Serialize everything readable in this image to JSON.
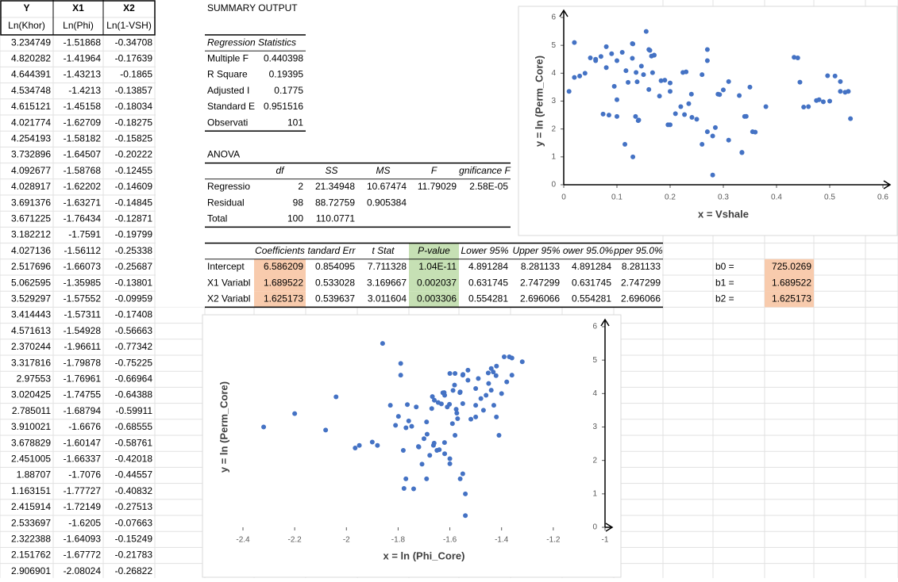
{
  "sheet": {
    "header": [
      "Y",
      "X1",
      "X2"
    ],
    "subheader": [
      "Ln(Khor)",
      "Ln(Phi)",
      "Ln(1-VSH)"
    ],
    "rows": [
      [
        3.234749,
        -1.51868,
        -0.34708
      ],
      [
        4.820282,
        -1.41964,
        -0.17639
      ],
      [
        4.644391,
        -1.43213,
        -0.1865
      ],
      [
        4.534748,
        -1.4213,
        -0.13857
      ],
      [
        4.615121,
        -1.45158,
        -0.18034
      ],
      [
        4.021774,
        -1.62709,
        -0.18275
      ],
      [
        4.254193,
        -1.58182,
        -0.15825
      ],
      [
        3.732896,
        -1.64507,
        -0.20222
      ],
      [
        4.092677,
        -1.58768,
        -0.12455
      ],
      [
        4.028917,
        -1.62202,
        -0.14609
      ],
      [
        3.691376,
        -1.63271,
        -0.14845
      ],
      [
        3.671225,
        -1.76434,
        -0.12871
      ],
      [
        3.182212,
        -1.7591,
        -0.19799
      ],
      [
        4.027136,
        -1.56112,
        -0.25338
      ],
      [
        2.517696,
        -1.66073,
        -0.25687
      ],
      [
        5.062595,
        -1.35985,
        -0.13801
      ],
      [
        3.529297,
        -1.57552,
        -0.09959
      ],
      [
        3.414443,
        -1.57311,
        -0.17408
      ],
      [
        4.571613,
        -1.54928,
        -0.56663
      ],
      [
        2.370244,
        -1.96611,
        -0.77342
      ],
      [
        3.317816,
        -1.79878,
        -0.75225
      ],
      [
        2.97553,
        -1.76961,
        -0.66964
      ],
      [
        3.020425,
        -1.74755,
        -0.64388
      ],
      [
        2.785011,
        -1.68794,
        -0.59911
      ],
      [
        3.910021,
        -1.6676,
        -0.68555
      ],
      [
        3.678829,
        -1.60147,
        -0.58761
      ],
      [
        2.451005,
        -1.66337,
        -0.42018
      ],
      [
        1.88707,
        -1.7076,
        -0.44557
      ],
      [
        1.163151,
        -1.77727,
        -0.40832
      ],
      [
        2.415914,
        -1.72149,
        -0.27513
      ],
      [
        2.533697,
        -1.6205,
        -0.07663
      ],
      [
        2.322388,
        -1.64093,
        -0.15249
      ],
      [
        2.151762,
        -1.67772,
        -0.21783
      ],
      [
        2.906901,
        -2.08024,
        -0.26822
      ]
    ]
  },
  "summary": {
    "title": "SUMMARY OUTPUT",
    "regression_statistics": {
      "title": "Regression Statistics",
      "rows": [
        [
          "Multiple F",
          0.440398
        ],
        [
          "R Square",
          0.19395
        ],
        [
          "Adjusted I",
          0.1775
        ],
        [
          "Standard E",
          0.951516
        ],
        [
          "Observati",
          101
        ]
      ]
    },
    "anova": {
      "title": "ANOVA",
      "header": [
        "df",
        "SS",
        "MS",
        "F",
        "gnificance F"
      ],
      "rows": [
        [
          "Regressio",
          2,
          21.34948,
          10.67474,
          11.79029,
          "2.58E-05"
        ],
        [
          "Residual",
          98,
          88.72759,
          0.905384
        ],
        [
          "Total",
          100,
          110.0771
        ]
      ]
    },
    "coefficients": {
      "header": [
        "Coefficients",
        "tandard Err",
        "t Stat",
        "P-value",
        "Lower 95%",
        "Upper 95%",
        "ower 95.0%",
        "pper 95.0%"
      ],
      "rows": [
        [
          "Intercept",
          6.586209,
          0.854095,
          7.711328,
          "1.04E-11",
          4.891284,
          8.281133,
          4.891284,
          8.281133
        ],
        [
          "X1 Variabl",
          1.689522,
          0.533028,
          3.169667,
          0.002037,
          0.631745,
          2.747299,
          0.631745,
          2.747299
        ],
        [
          "X2 Variabl",
          1.625173,
          0.539637,
          3.011604,
          0.003306,
          0.554281,
          2.696066,
          0.554281,
          2.696066
        ]
      ]
    }
  },
  "b_values": [
    [
      "b0 =",
      725.0269
    ],
    [
      "b1 =",
      1.689522
    ],
    [
      "b2 =",
      1.625173
    ]
  ],
  "chart_data": [
    {
      "type": "scatter",
      "xlabel": "x = Vshale",
      "ylabel": "y = ln (Perm_Core)",
      "color": "#4472c4",
      "xlim": [
        0,
        0.6
      ],
      "ylim": [
        0,
        6
      ],
      "xticks": [
        0,
        0.1,
        0.2,
        0.3,
        0.4,
        0.5,
        0.6
      ],
      "yticks": [
        0,
        1,
        2,
        3,
        4,
        5,
        6
      ],
      "x": [
        0.293,
        0.162,
        0.17,
        0.129,
        0.165,
        0.167,
        0.146,
        0.183,
        0.117,
        0.136,
        0.138,
        0.121,
        0.18,
        0.224,
        0.227,
        0.129,
        0.095,
        0.16,
        0.433,
        0.539,
        0.529,
        0.488,
        0.475,
        0.451,
        0.496,
        0.444,
        0.343,
        0.36,
        0.335,
        0.241,
        0.074,
        0.141,
        0.196,
        0.235,
        0.01,
        0.02,
        0.02,
        0.03,
        0.04,
        0.05,
        0.06,
        0.07,
        0.08,
        0.08,
        0.085,
        0.09,
        0.1,
        0.1,
        0.1,
        0.11,
        0.115,
        0.13,
        0.13,
        0.135,
        0.14,
        0.15,
        0.155,
        0.16,
        0.17,
        0.19,
        0.2,
        0.2,
        0.2,
        0.21,
        0.22,
        0.23,
        0.24,
        0.25,
        0.26,
        0.26,
        0.27,
        0.27,
        0.27,
        0.28,
        0.28,
        0.285,
        0.29,
        0.3,
        0.31,
        0.31,
        0.33,
        0.335,
        0.34,
        0.35,
        0.355,
        0.38,
        0.46,
        0.48,
        0.5,
        0.51,
        0.52,
        0.535,
        0.44,
        0.52,
        0.06
      ],
      "values": [
        3.234749,
        4.820282,
        4.644391,
        4.534748,
        4.615121,
        4.021774,
        4.254193,
        3.732896,
        4.092677,
        4.028917,
        3.691376,
        3.671225,
        3.182212,
        4.027136,
        2.517696,
        5.062595,
        3.529297,
        3.414443,
        4.571613,
        2.370244,
        3.317816,
        2.97553,
        3.020425,
        2.785011,
        3.910021,
        3.678829,
        2.451005,
        1.88707,
        1.163151,
        2.415914,
        2.533697,
        2.322388,
        2.151762,
        2.906901,
        3.35,
        3.85,
        5.1,
        3.9,
        4,
        4.55,
        4.45,
        4.6,
        4.95,
        4.2,
        2.5,
        4.7,
        3.05,
        2.45,
        4.45,
        4.75,
        1.45,
        1,
        5.05,
        2.45,
        2.3,
        3.95,
        5.5,
        4.85,
        4.65,
        3.75,
        2.15,
        3.65,
        3.35,
        2.55,
        2.8,
        4.05,
        3.25,
        2.35,
        1.45,
        3.95,
        1.9,
        4.85,
        4.45,
        0.35,
        1.75,
        2.05,
        3.25,
        3.4,
        3.7,
        1.6,
        3.2,
        1.15,
        2.45,
        3.5,
        1.9,
        2.8,
        2.8,
        3.05,
        3,
        3.9,
        3.35,
        3.35,
        4.55,
        3.7,
        4.5
      ]
    },
    {
      "type": "scatter",
      "xlabel": "x = ln (Phi_Core)",
      "ylabel": "y = ln (Perm_Core)",
      "color": "#4472c4",
      "xlim": [
        -2.4,
        -1
      ],
      "ylim": [
        0,
        6
      ],
      "xticks": [
        -2.4,
        -2.2,
        -2,
        -1.8,
        -1.6,
        -1.4,
        -1.2,
        -1
      ],
      "yticks": [
        0,
        1,
        2,
        3,
        4,
        5,
        6
      ],
      "x": [
        -1.51868,
        -1.41964,
        -1.43213,
        -1.4213,
        -1.45158,
        -1.62709,
        -1.58182,
        -1.64507,
        -1.58768,
        -1.62202,
        -1.63271,
        -1.76434,
        -1.7591,
        -1.56112,
        -1.66073,
        -1.35985,
        -1.57552,
        -1.57311,
        -1.54928,
        -1.96611,
        -1.79878,
        -1.76961,
        -1.74755,
        -1.68794,
        -1.6676,
        -1.60147,
        -1.66337,
        -1.7076,
        -1.77727,
        -1.72149,
        -1.6205,
        -1.64093,
        -1.67772,
        -2.08024,
        -2.32,
        -2.2,
        -2.04,
        -1.95,
        -1.9,
        -1.88,
        -1.86,
        -1.83,
        -1.81,
        -1.79,
        -1.79,
        -1.78,
        -1.74,
        -1.73,
        -1.69,
        -1.69,
        -1.65,
        -1.6,
        -1.6,
        -1.6,
        -1.58,
        -1.56,
        -1.56,
        -1.55,
        -1.54,
        -1.54,
        -1.53,
        -1.5,
        -1.49,
        -1.47,
        -1.46,
        -1.45,
        -1.44,
        -1.42,
        -1.41,
        -1.39,
        -1.37,
        -1.36,
        -1.32,
        -1.4,
        -1.38,
        -1.5,
        -1.55,
        -1.58,
        -1.62,
        -1.67,
        -1.7,
        -1.57,
        -1.48,
        -1.44,
        -1.53,
        -1.66,
        -1.72,
        -1.55,
        -1.61,
        -1.43,
        -1.5,
        -1.59,
        -1.62,
        -1.77
      ],
      "values": [
        3.234749,
        4.820282,
        4.644391,
        4.534748,
        4.615121,
        4.021774,
        4.254193,
        3.732896,
        4.092677,
        4.028917,
        3.691376,
        3.671225,
        3.182212,
        4.027136,
        2.517696,
        5.062595,
        3.529297,
        3.414443,
        4.571613,
        2.370244,
        3.317816,
        2.97553,
        3.020425,
        2.785011,
        3.910021,
        3.678829,
        2.451005,
        1.88707,
        1.163151,
        2.415914,
        2.533697,
        2.322388,
        2.151762,
        2.906901,
        3,
        3.4,
        3.9,
        2.45,
        2.55,
        2.45,
        5.5,
        3.65,
        3.05,
        4.9,
        4.55,
        2.3,
        1.15,
        3.6,
        1.45,
        3.15,
        2.3,
        2.05,
        1.9,
        4.6,
        4.6,
        4.05,
        1.45,
        1.6,
        1,
        0.35,
        4.7,
        3.3,
        4.45,
        3.5,
        3.95,
        4.3,
        4.75,
        3.3,
        2.75,
        5.1,
        5.1,
        4.55,
        4.95,
        4,
        4.35,
        4.15,
        3.7,
        2.75,
        3.95,
        3.55,
        2.65,
        3.25,
        3.85,
        4.1,
        4.4,
        3.8,
        2.4,
        4.55,
        3.6,
        3.65,
        3.65,
        3.1,
        2.2,
        1.45
      ]
    }
  ]
}
